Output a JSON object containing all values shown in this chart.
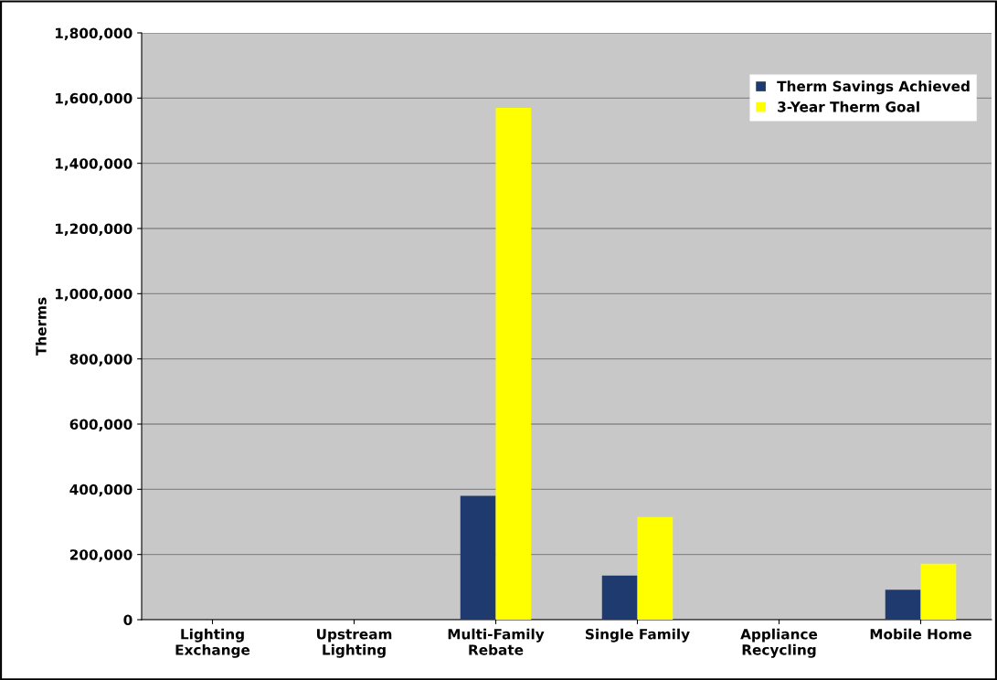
{
  "chart_data": {
    "type": "bar",
    "ylabel": "Therms",
    "categories": [
      "Lighting\nExchange",
      "Upstream\nLighting",
      "Multi-Family\nRebate",
      "Single Family",
      "Appliance\nRecycling",
      "Mobile Home"
    ],
    "series": [
      {
        "name": "Therm Savings Achieved",
        "color": "#1f3a6e",
        "values": [
          0,
          0,
          380000,
          135000,
          0,
          92000
        ]
      },
      {
        "name": "3-Year Therm Goal",
        "color": "#ffff00",
        "values": [
          0,
          0,
          1570000,
          315000,
          0,
          172000
        ]
      }
    ],
    "ylim": [
      0,
      1800000
    ],
    "yticks": [
      {
        "value": 0,
        "label": "0"
      },
      {
        "value": 200000,
        "label": "200,000"
      },
      {
        "value": 400000,
        "label": "400,000"
      },
      {
        "value": 600000,
        "label": "600,000"
      },
      {
        "value": 800000,
        "label": "800,000"
      },
      {
        "value": 1000000,
        "label": "1,000,000"
      },
      {
        "value": 1200000,
        "label": "1,200,000"
      },
      {
        "value": 1400000,
        "label": "1,400,000"
      },
      {
        "value": 1600000,
        "label": "1,600,000"
      },
      {
        "value": 1800000,
        "label": "1,800,000"
      }
    ],
    "grid": "y",
    "legend": "top right"
  }
}
